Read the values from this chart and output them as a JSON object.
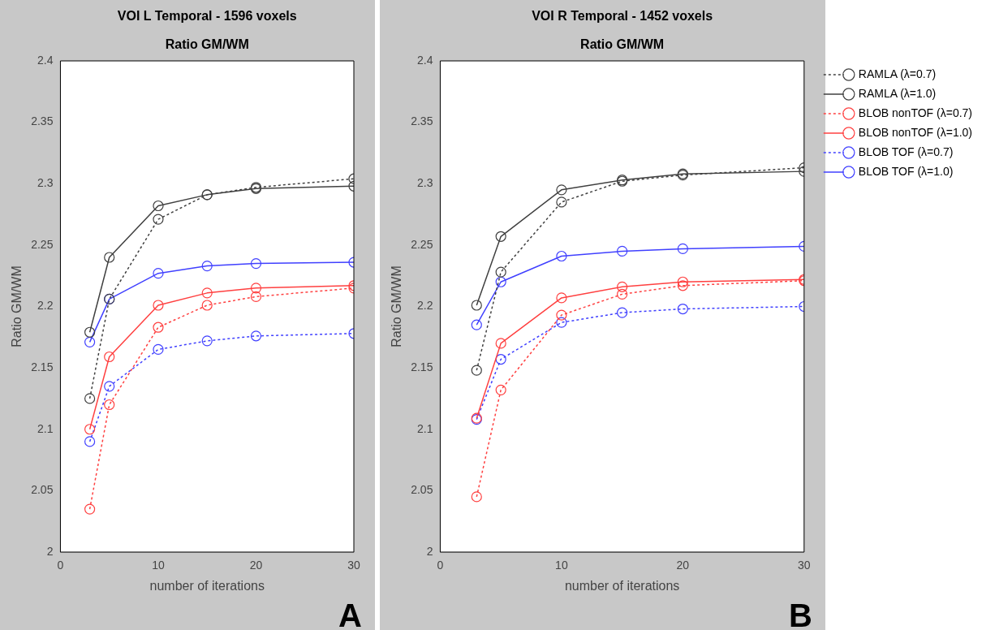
{
  "chart_data": [
    {
      "type": "line",
      "title": "VOI L Temporal - 1596 voxels",
      "subtitle": "Ratio GM/WM",
      "xlabel": "number of iterations",
      "ylabel": "Ratio GM/WM",
      "x": [
        3,
        5,
        10,
        15,
        20,
        30
      ],
      "xlim": [
        0,
        30
      ],
      "xticks": [
        0,
        10,
        20,
        30
      ],
      "ylim": [
        2,
        2.4
      ],
      "yticks": [
        2,
        2.05,
        2.1,
        2.15,
        2.2,
        2.25,
        2.3,
        2.35,
        2.4
      ],
      "grid": false,
      "legend": false,
      "marker": "circle",
      "annotations": [
        "A"
      ],
      "series": [
        {
          "color": "#404040",
          "line_style": "dotted",
          "values": [
            2.125,
            2.206,
            2.271,
            2.291,
            2.297,
            2.304
          ]
        },
        {
          "color": "#404040",
          "line_style": "solid",
          "values": [
            2.179,
            2.24,
            2.282,
            2.291,
            2.296,
            2.298
          ]
        },
        {
          "color": "#ff4040",
          "line_style": "dotted",
          "values": [
            2.035,
            2.12,
            2.183,
            2.201,
            2.208,
            2.215
          ]
        },
        {
          "color": "#ff4040",
          "line_style": "solid",
          "values": [
            2.1,
            2.159,
            2.201,
            2.211,
            2.215,
            2.217
          ]
        },
        {
          "color": "#4040ff",
          "line_style": "dotted",
          "values": [
            2.09,
            2.135,
            2.165,
            2.172,
            2.176,
            2.178
          ]
        },
        {
          "color": "#4040ff",
          "line_style": "solid",
          "values": [
            2.171,
            2.206,
            2.227,
            2.233,
            2.235,
            2.236
          ]
        }
      ]
    },
    {
      "type": "line",
      "title": "VOI R Temporal - 1452 voxels",
      "subtitle": "Ratio GM/WM",
      "xlabel": "number of iterations",
      "ylabel": "Ratio GM/WM",
      "x": [
        3,
        5,
        10,
        15,
        20,
        30
      ],
      "xlim": [
        0,
        30
      ],
      "xticks": [
        0,
        10,
        20,
        30
      ],
      "ylim": [
        2,
        2.4
      ],
      "yticks": [
        2,
        2.05,
        2.1,
        2.15,
        2.2,
        2.25,
        2.3,
        2.35,
        2.4
      ],
      "grid": false,
      "legend": "right",
      "marker": "circle",
      "annotations": [
        "B"
      ],
      "series": [
        {
          "name": "RAMLA (λ=0.7)",
          "color": "#404040",
          "line_style": "dotted",
          "values": [
            2.148,
            2.228,
            2.285,
            2.302,
            2.307,
            2.313
          ]
        },
        {
          "name": "RAMLA (λ=1.0)",
          "color": "#404040",
          "line_style": "solid",
          "values": [
            2.201,
            2.257,
            2.295,
            2.303,
            2.308,
            2.31
          ]
        },
        {
          "name": "BLOB nonTOF (λ=0.7)",
          "color": "#ff4040",
          "line_style": "dotted",
          "values": [
            2.045,
            2.132,
            2.193,
            2.21,
            2.217,
            2.221
          ]
        },
        {
          "name": "BLOB nonTOF (λ=1.0)",
          "color": "#ff4040",
          "line_style": "solid",
          "values": [
            2.109,
            2.17,
            2.207,
            2.216,
            2.22,
            2.222
          ]
        },
        {
          "name": "BLOB TOF (λ=0.7)",
          "color": "#4040ff",
          "line_style": "dotted",
          "values": [
            2.108,
            2.157,
            2.187,
            2.195,
            2.198,
            2.2
          ]
        },
        {
          "name": "BLOB TOF (λ=1.0)",
          "color": "#4040ff",
          "line_style": "solid",
          "values": [
            2.185,
            2.22,
            2.241,
            2.245,
            2.247,
            2.249
          ]
        }
      ]
    }
  ]
}
